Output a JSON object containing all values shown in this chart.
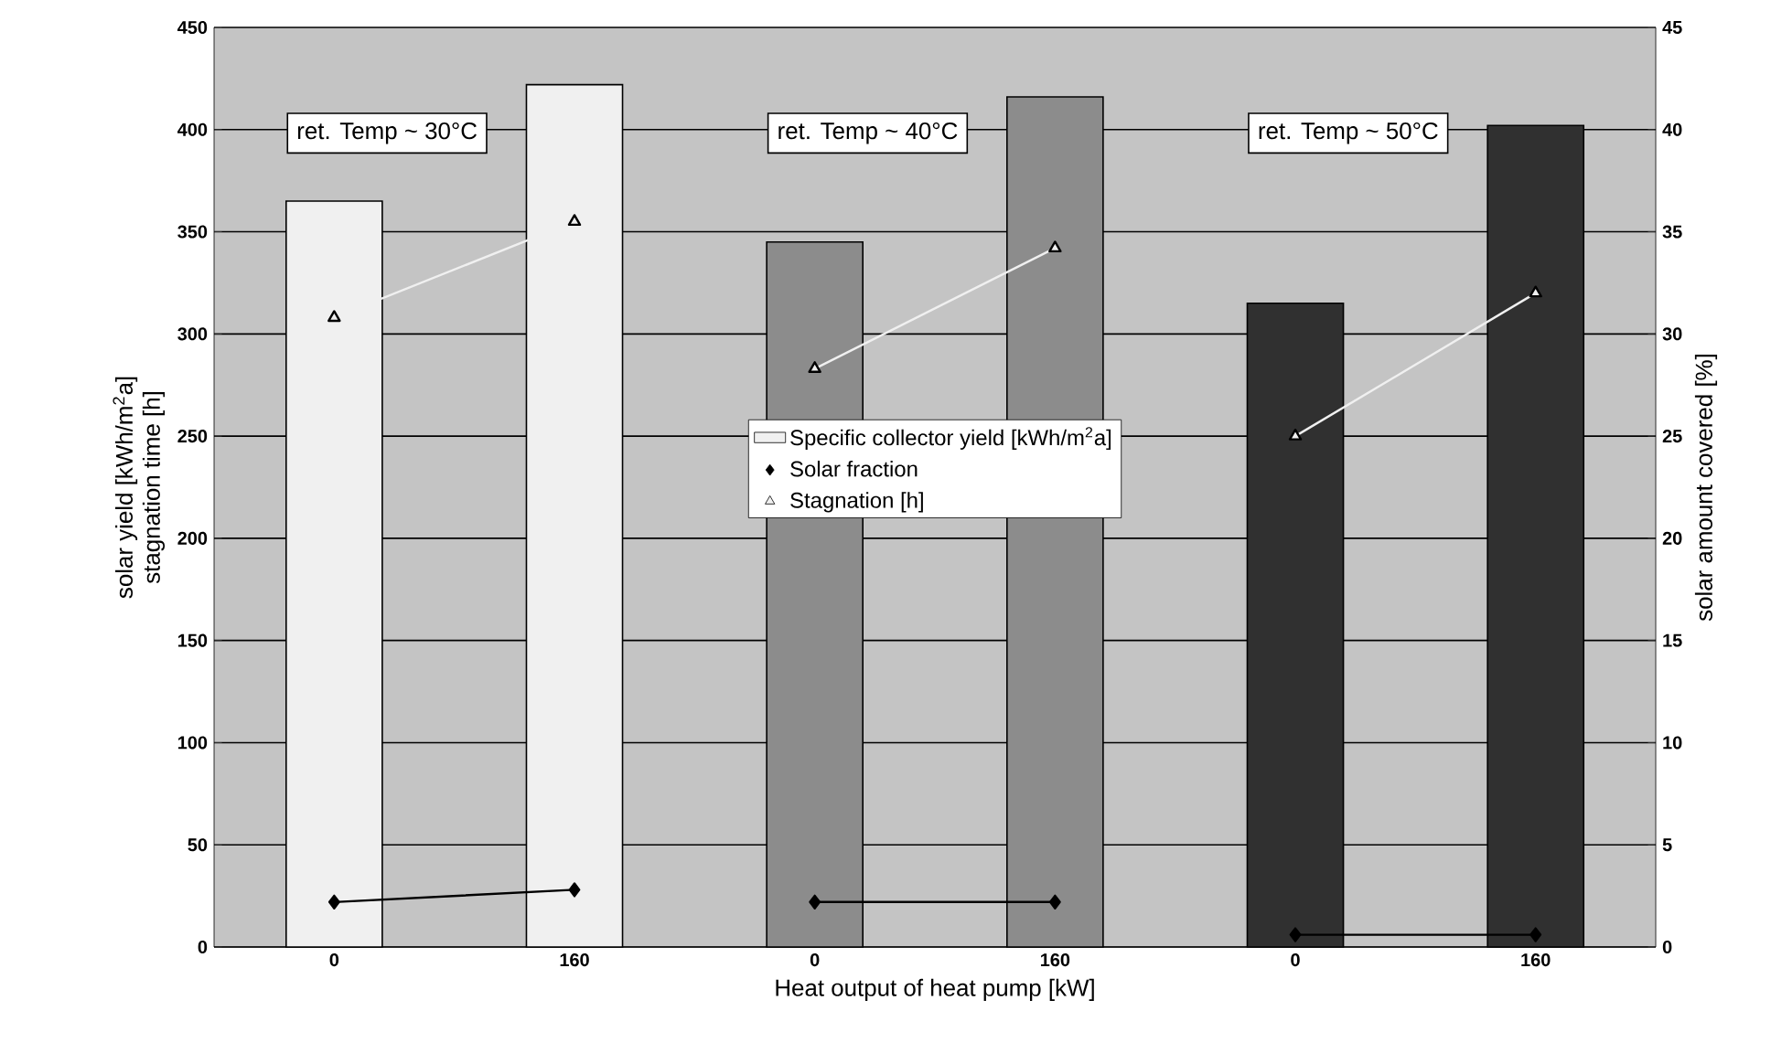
{
  "chart_data": {
    "type": "bar",
    "categories": [
      "0",
      "160",
      "0",
      "160",
      "0",
      "160"
    ],
    "xlabel": "Heat output of heat pump [kW]",
    "ylabel": "solar yield [kWh/m$^{2}$a]\nstagnation time [h]",
    "y2label": "solar amount covered [%]",
    "ylim": [
      0,
      450
    ],
    "yticks": [
      0,
      50,
      100,
      150,
      200,
      250,
      300,
      350,
      400,
      450
    ],
    "y2lim": [
      0,
      45
    ],
    "y2ticks": [
      0,
      5,
      10,
      15,
      20,
      25,
      30,
      35,
      40,
      45
    ],
    "grid": "y",
    "legend": "center",
    "annotations": [
      "ret. Temp ~ 30°C",
      "ret. Temp ~ 40°C",
      "ret. Temp ~ 50°C"
    ],
    "series": [
      {
        "name": "Specific collector yield [kWh/m$^{2}$a]",
        "colors": [
          "#f0f0f0",
          "#f0f0f0",
          "#8c8c8c",
          "#8c8c8c",
          "#303030",
          "#303030"
        ],
        "color": "#f0f0f0",
        "values": [
          365,
          422,
          345,
          416,
          315,
          402
        ]
      },
      {
        "name": "Solar fraction",
        "type": "line",
        "axis": "y2",
        "marker": "diamond",
        "color": "#000000",
        "values": [
          2.2,
          2.8,
          2.2,
          2.2,
          0.6,
          0.6
        ]
      },
      {
        "name": "Stagnation [h]",
        "type": "line",
        "marker": "triangle",
        "color": "#f0f0f0",
        "values": [
          308,
          355,
          283,
          342,
          250,
          320
        ]
      }
    ]
  }
}
